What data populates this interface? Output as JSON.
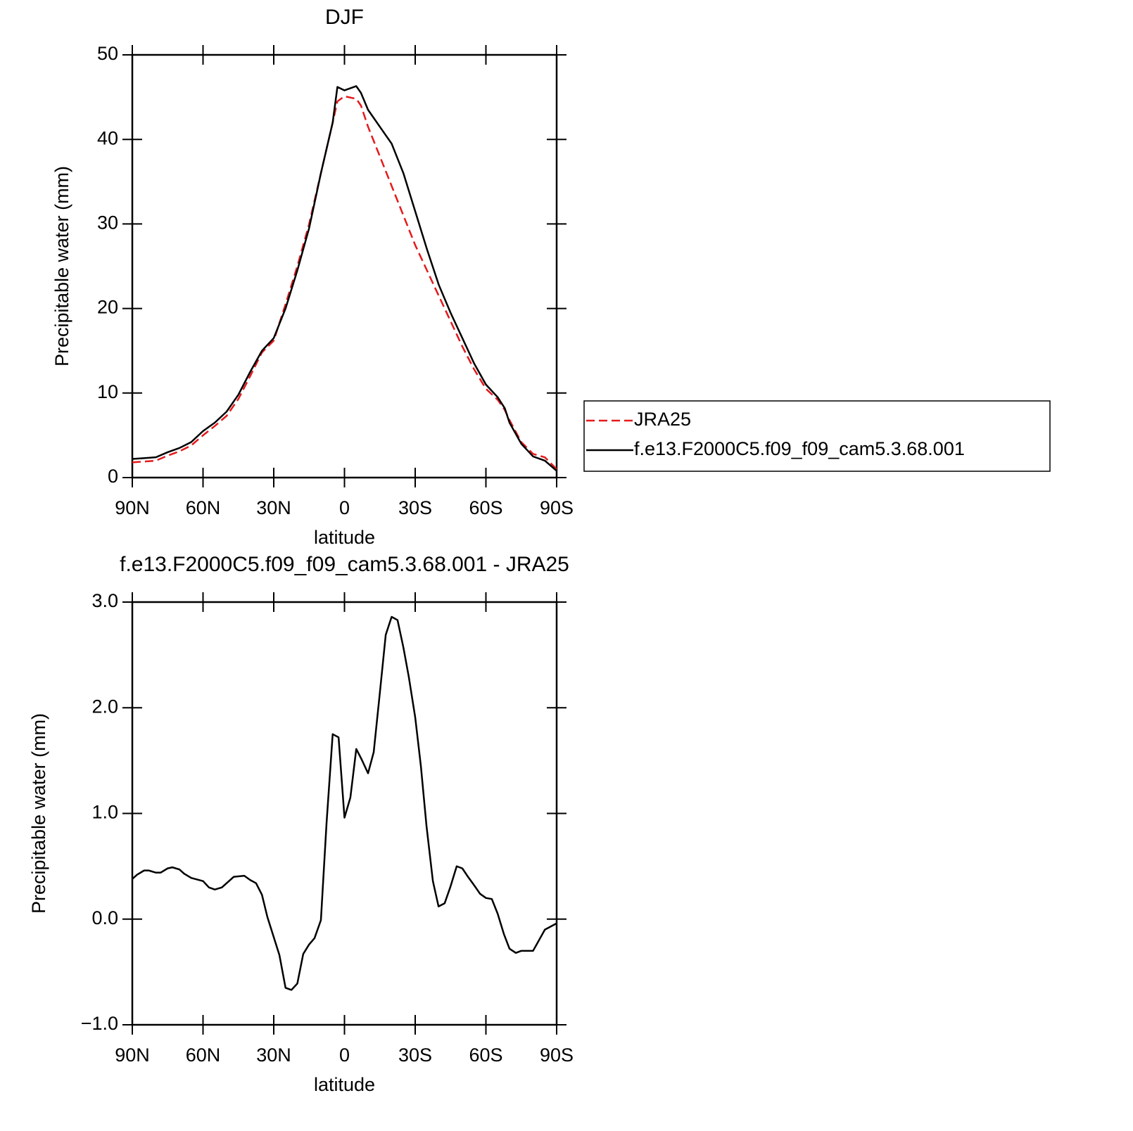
{
  "chart_data": [
    {
      "type": "line",
      "title": "DJF",
      "xlabel": "latitude",
      "ylabel": "Precipitable water (mm)",
      "x": [
        90,
        85,
        80,
        75,
        70,
        65,
        60,
        55,
        50,
        45,
        40,
        35,
        30,
        25,
        20,
        15,
        10,
        5,
        3,
        0,
        -5,
        -7,
        -10,
        -15,
        -20,
        -25,
        -30,
        -35,
        -40,
        -45,
        -50,
        -55,
        -60,
        -65,
        -68,
        -70,
        -75,
        -80,
        -85,
        -90
      ],
      "series": [
        {
          "name": "JRA25",
          "color": "#e41a1c",
          "dashed": true,
          "values": [
            1.8,
            1.9,
            2.0,
            2.6,
            3.1,
            3.8,
            5.0,
            6.1,
            7.3,
            9.3,
            12.0,
            14.8,
            16.2,
            20.5,
            25.0,
            30.0,
            36.0,
            42.0,
            44.5,
            45.1,
            44.8,
            44.0,
            41.5,
            38.0,
            34.5,
            31.0,
            27.5,
            24.5,
            21.5,
            18.5,
            15.5,
            12.8,
            10.5,
            9.2,
            8.0,
            6.8,
            4.2,
            2.8,
            2.4,
            1.0
          ]
        },
        {
          "name": "f.e13.F2000C5.f09_f09_cam5.3.68.001",
          "color": "#000000",
          "dashed": false,
          "values": [
            2.2,
            2.3,
            2.4,
            3.0,
            3.5,
            4.2,
            5.5,
            6.5,
            7.8,
            9.8,
            12.5,
            15.0,
            16.5,
            20.0,
            24.5,
            29.5,
            36.0,
            42.0,
            46.2,
            45.8,
            46.3,
            45.5,
            43.5,
            41.5,
            39.5,
            36.0,
            31.5,
            27.0,
            22.8,
            19.5,
            16.5,
            13.5,
            11.0,
            9.5,
            8.2,
            6.5,
            4.0,
            2.5,
            2.0,
            0.8
          ]
        }
      ],
      "xlim": [
        90,
        -90
      ],
      "xticks": [
        {
          "value": 90,
          "label": "90N"
        },
        {
          "value": 60,
          "label": "60N"
        },
        {
          "value": 30,
          "label": "30N"
        },
        0,
        {
          "value": -30,
          "label": "30S"
        },
        {
          "value": -60,
          "label": "60S"
        },
        {
          "value": -90,
          "label": "90S"
        }
      ],
      "ylim": [
        0,
        50
      ],
      "yticks": [
        0,
        10,
        20,
        30,
        40,
        50
      ],
      "legend": "right"
    },
    {
      "type": "line",
      "title": "f.e13.F2000C5.f09_f09_cam5.3.68.001 - JRA25",
      "xlabel": "latitude",
      "ylabel": "Precipitable water (mm)",
      "x": [
        90,
        88,
        85,
        83,
        80,
        78,
        75,
        73,
        70,
        68,
        65,
        60,
        57.5,
        55,
        52,
        47,
        42.5,
        40,
        37.5,
        35,
        32.7,
        27.6,
        25,
        22.5,
        20,
        17.5,
        15,
        12.7,
        10,
        7.6,
        5,
        2.5,
        0,
        -2.5,
        -5,
        -7.3,
        -10,
        -12.4,
        -15,
        -17.5,
        -20,
        -22.5,
        -25,
        -27.3,
        -30,
        -32.4,
        -34.8,
        -37.5,
        -39.9,
        -42.5,
        -45,
        -47.6,
        -50,
        -52.4,
        -55,
        -57.5,
        -60,
        -62.5,
        -65,
        -67.6,
        -70,
        -72.7,
        -75,
        -77.5,
        -80,
        -82.5,
        -85,
        -90
      ],
      "series": [
        {
          "color": "#000000",
          "dashed": false,
          "values": [
            0.38,
            0.42,
            0.46,
            0.46,
            0.44,
            0.44,
            0.48,
            0.49,
            0.47,
            0.43,
            0.39,
            0.36,
            0.3,
            0.28,
            0.3,
            0.4,
            0.41,
            0.37,
            0.34,
            0.23,
            0.02,
            -0.34,
            -0.65,
            -0.67,
            -0.61,
            -0.33,
            -0.24,
            -0.18,
            -0.01,
            0.91,
            1.75,
            1.72,
            0.96,
            1.15,
            1.61,
            1.51,
            1.38,
            1.58,
            2.14,
            2.69,
            2.86,
            2.83,
            2.57,
            2.29,
            1.91,
            1.45,
            0.88,
            0.36,
            0.12,
            0.15,
            0.31,
            0.5,
            0.48,
            0.4,
            0.32,
            0.24,
            0.2,
            0.19,
            0.05,
            -0.14,
            -0.28,
            -0.32,
            -0.3,
            -0.3,
            -0.3,
            -0.2,
            -0.1,
            -0.04
          ]
        }
      ],
      "xlim": [
        90,
        -90
      ],
      "xticks": [
        {
          "value": 90,
          "label": "90N"
        },
        {
          "value": 60,
          "label": "60N"
        },
        {
          "value": 30,
          "label": "30N"
        },
        0,
        {
          "value": -30,
          "label": "30S"
        },
        {
          "value": -60,
          "label": "60S"
        },
        {
          "value": -90,
          "label": "90S"
        }
      ],
      "ylim": [
        -1,
        3
      ],
      "yticks": [
        {
          "value": -1,
          "label": "−1.0"
        },
        {
          "value": 0,
          "label": "0.0"
        },
        {
          "value": 1,
          "label": "1.0"
        },
        {
          "value": 2,
          "label": "2.0"
        },
        {
          "value": 3,
          "label": "3.0"
        }
      ]
    }
  ]
}
